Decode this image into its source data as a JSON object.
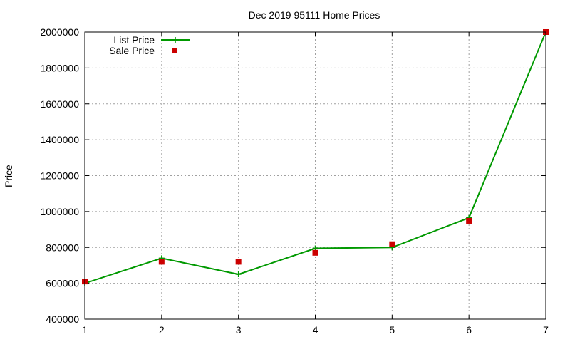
{
  "chart_data": {
    "type": "line",
    "title": "Dec 2019 95111 Home Prices",
    "xlabel": "",
    "ylabel": "Price",
    "xlim": [
      1,
      7
    ],
    "ylim": [
      400000,
      2000000
    ],
    "xticks": [
      1,
      2,
      3,
      4,
      5,
      6,
      7
    ],
    "yticks": [
      400000,
      600000,
      800000,
      1000000,
      1200000,
      1400000,
      1600000,
      1800000,
      2000000
    ],
    "grid": true,
    "legend_position": "top-left",
    "x": [
      1,
      2,
      3,
      4,
      5,
      6,
      7
    ],
    "series": [
      {
        "name": "List Price",
        "style": "line-with-plus-markers",
        "color": "#009900",
        "values": [
          600000,
          740000,
          650000,
          795000,
          800000,
          965000,
          2000000
        ]
      },
      {
        "name": "Sale Price",
        "style": "square-points",
        "color": "#cc0000",
        "values": [
          610000,
          720000,
          720000,
          770000,
          818000,
          948000,
          2000000
        ]
      }
    ]
  }
}
